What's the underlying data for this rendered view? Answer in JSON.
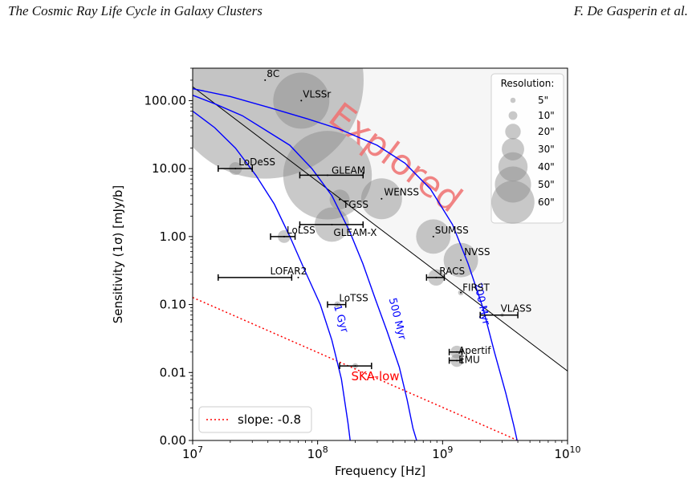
{
  "page": {
    "header_left": "The Cosmic Ray Life Cycle in Galaxy Clusters",
    "header_right": "F. De Gasperin et al."
  },
  "chart_data": {
    "type": "scatter",
    "xlabel": "Frequency [Hz]",
    "ylabel": "Sensitivity (1σ) [mJy/b]",
    "xscale": "log",
    "yscale": "log",
    "xlim": [
      10000000.0,
      10000000000.0
    ],
    "ylim": [
      0.001,
      300
    ],
    "x_ticks": [
      {
        "value": 10000000.0,
        "base": "10",
        "exp": "7"
      },
      {
        "value": 100000000.0,
        "base": "10",
        "exp": "8"
      },
      {
        "value": 1000000000.0,
        "base": "10",
        "exp": "9"
      },
      {
        "value": 10000000000.0,
        "base": "10",
        "exp": "10"
      }
    ],
    "y_ticks": [
      {
        "value": 0.001,
        "label": "0.00"
      },
      {
        "value": 0.01,
        "label": "0.01"
      },
      {
        "value": 0.1,
        "label": "0.10"
      },
      {
        "value": 1,
        "label": "1.00"
      },
      {
        "value": 10,
        "label": "10.00"
      },
      {
        "value": 100,
        "label": "100.00"
      }
    ],
    "explored_label": "Explored",
    "explored_region": {
      "boundary_points": [
        [
          10000000.0,
          160
        ],
        [
          10000000000.0,
          0.0105
        ]
      ]
    },
    "surveys": [
      {
        "name": "8C",
        "freq": 38000000.0,
        "sens": 200,
        "resolution": 270
      },
      {
        "name": "VLSSr",
        "freq": 74000000.0,
        "sens": 100,
        "resolution": 75
      },
      {
        "name": "LoDeSS",
        "freq": 22000000.0,
        "sens": 10,
        "resolution": 15,
        "freq_range": [
          16000000.0,
          30000000.0
        ]
      },
      {
        "name": "GLEAM",
        "freq": 120000000.0,
        "sens": 8,
        "resolution": 120,
        "freq_range": [
          72000000.0,
          231000000.0
        ]
      },
      {
        "name": "WENSS",
        "freq": 325000000.0,
        "sens": 3.6,
        "resolution": 54
      },
      {
        "name": "TGSS",
        "freq": 150000000.0,
        "sens": 3.5,
        "resolution": 25
      },
      {
        "name": "GLEAM-X",
        "freq": 130000000.0,
        "sens": 1.5,
        "resolution": 45,
        "freq_range": [
          72000000.0,
          231000000.0
        ]
      },
      {
        "name": "LoLSS",
        "freq": 54000000.0,
        "sens": 1.0,
        "resolution": 15,
        "freq_range": [
          42000000.0,
          66000000.0
        ]
      },
      {
        "name": "SUMSS",
        "freq": 843000000.0,
        "sens": 1.0,
        "resolution": 45
      },
      {
        "name": "NVSS",
        "freq": 1400000000.0,
        "sens": 0.45,
        "resolution": 45
      },
      {
        "name": "LOFAR2",
        "freq": 70000000.0,
        "sens": 0.25,
        "resolution": 0,
        "freq_range": [
          16000000.0,
          62000000.0
        ]
      },
      {
        "name": "RACS",
        "freq": 888000000.0,
        "sens": 0.25,
        "resolution": 20,
        "freq_range": [
          744000000.0,
          1032000000.0
        ]
      },
      {
        "name": "FIRST",
        "freq": 1400000000.0,
        "sens": 0.15,
        "resolution": 5
      },
      {
        "name": "LoTSS",
        "freq": 144000000.0,
        "sens": 0.1,
        "resolution": 6,
        "freq_range": [
          120000000.0,
          168000000.0
        ]
      },
      {
        "name": "VLASS",
        "freq": 3000000000.0,
        "sens": 0.07,
        "resolution": 2.5,
        "freq_range": [
          2000000000.0,
          4000000000.0
        ]
      },
      {
        "name": "Apertif",
        "freq": 1300000000.0,
        "sens": 0.02,
        "resolution": 15,
        "freq_range": [
          1130000000.0,
          1430000000.0
        ]
      },
      {
        "name": "EMU",
        "freq": 1300000000.0,
        "sens": 0.015,
        "resolution": 15,
        "freq_range": [
          1130000000.0,
          1430000000.0
        ]
      },
      {
        "name": "SKA-low",
        "freq": 200000000.0,
        "sens": 0.0125,
        "resolution": 5,
        "freq_range": [
          150000000.0,
          270000000.0
        ]
      }
    ],
    "slope_line": {
      "label": "slope: -0.8",
      "color": "#ff0000",
      "points": [
        [
          10000000.0,
          0.127
        ],
        [
          4000000000.0,
          0.001
        ]
      ]
    },
    "reference_line": {
      "color": "#000000",
      "points": [
        [
          10000000.0,
          160
        ],
        [
          10000000000.0,
          0.0105
        ]
      ]
    },
    "aging_curves": [
      {
        "label": "1 Gyr",
        "color": "#0000ff",
        "points": [
          [
            10000000.0,
            70
          ],
          [
            15000000.0,
            40
          ],
          [
            22000000.0,
            20
          ],
          [
            32000000.0,
            8
          ],
          [
            45000000.0,
            3
          ],
          [
            60000000.0,
            1
          ],
          [
            80000000.0,
            0.3
          ],
          [
            105000000.0,
            0.1
          ],
          [
            130000000.0,
            0.03
          ],
          [
            155000000.0,
            0.008
          ],
          [
            175000000.0,
            0.0018
          ],
          [
            182000000.0,
            0.001
          ]
        ]
      },
      {
        "label": "500 Myr",
        "color": "#0000ff",
        "points": [
          [
            10000000.0,
            120
          ],
          [
            15000000.0,
            90
          ],
          [
            25000000.0,
            60
          ],
          [
            40000000.0,
            35
          ],
          [
            60000000.0,
            22
          ],
          [
            90000000.0,
            10
          ],
          [
            130000000.0,
            4
          ],
          [
            180000000.0,
            1.2
          ],
          [
            230000000.0,
            0.4
          ],
          [
            290000000.0,
            0.12
          ],
          [
            360000000.0,
            0.04
          ],
          [
            450000000.0,
            0.012
          ],
          [
            520000000.0,
            0.004
          ],
          [
            580000000.0,
            0.0015
          ],
          [
            620000000.0,
            0.001
          ]
        ]
      },
      {
        "label": "200 Myr",
        "color": "#0000ff",
        "points": [
          [
            10000000.0,
            150
          ],
          [
            20000000.0,
            115
          ],
          [
            40000000.0,
            80
          ],
          [
            80000000.0,
            55
          ],
          [
            150000000.0,
            38
          ],
          [
            300000000.0,
            22
          ],
          [
            500000000.0,
            12
          ],
          [
            800000000.0,
            5
          ],
          [
            1200000000.0,
            1.5
          ],
          [
            1600000000.0,
            0.4
          ],
          [
            2100000000.0,
            0.09
          ],
          [
            2600000000.0,
            0.02
          ],
          [
            3200000000.0,
            0.005
          ],
          [
            3700000000.0,
            0.0017
          ],
          [
            3950000000.0,
            0.001
          ]
        ]
      }
    ],
    "legend": {
      "title": "Resolution:",
      "placement": "top-right",
      "entries": [
        {
          "label": "5\"",
          "resolution": 5
        },
        {
          "label": "10\"",
          "resolution": 10
        },
        {
          "label": "20\"",
          "resolution": 20
        },
        {
          "label": "30\"",
          "resolution": 30
        },
        {
          "label": "40\"",
          "resolution": 40
        },
        {
          "label": "50\"",
          "resolution": 50
        },
        {
          "label": "60\"",
          "resolution": 60
        }
      ]
    },
    "line_legend_placement": "bottom-left"
  }
}
